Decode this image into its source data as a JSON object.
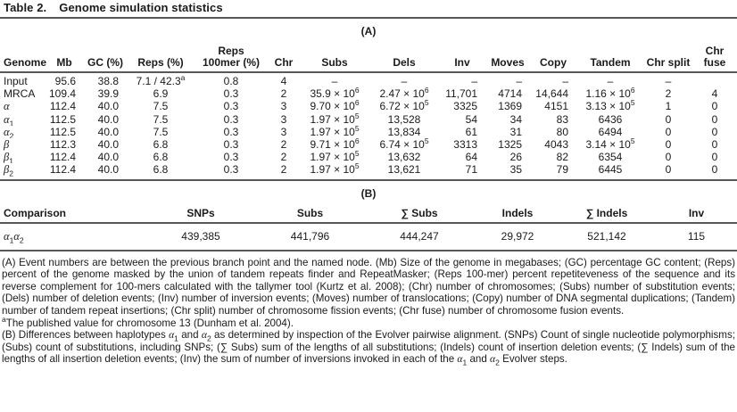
{
  "title": {
    "label": "Table 2.",
    "text": "Genome simulation statistics"
  },
  "sectionA": {
    "label": "(A)",
    "columns": [
      "Genome",
      "Mb",
      "GC (%)",
      "Reps (%)",
      "Reps\n100mer (%)",
      "Chr",
      "Subs",
      "Dels",
      "Inv",
      "Moves",
      "Copy",
      "Tandem",
      "Chr split",
      "Chr fuse"
    ],
    "rows": [
      [
        "Input",
        "95.6",
        "38.8",
        "7.1 / 42.3^a",
        "0.8",
        "4",
        "–",
        "–",
        "–",
        "–",
        "–",
        "–",
        "–",
        ""
      ],
      [
        "MRCA",
        "109.4",
        "39.9",
        "6.9",
        "0.3",
        "2",
        "35.9 × 10^6",
        "2.47 × 10^6",
        "11,701",
        "4714",
        "14,644",
        "1.16 × 10^6",
        "2",
        "4"
      ],
      [
        "α",
        "112.4",
        "40.0",
        "7.5",
        "0.3",
        "3",
        "9.70 × 10^6",
        "6.72 × 10^5",
        "3325",
        "1369",
        "4151",
        "3.13 × 10^5",
        "1",
        "0"
      ],
      [
        "α~1",
        "112.5",
        "40.0",
        "7.5",
        "0.3",
        "3",
        "1.97 × 10^5",
        "13,528",
        "54",
        "34",
        "83",
        "6436",
        "0",
        "0"
      ],
      [
        "α~2",
        "112.5",
        "40.0",
        "7.5",
        "0.3",
        "3",
        "1.97 × 10^5",
        "13,834",
        "61",
        "31",
        "80",
        "6494",
        "0",
        "0"
      ],
      [
        "β",
        "112.3",
        "40.0",
        "6.8",
        "0.3",
        "2",
        "9.71 × 10^6",
        "6.74 × 10^5",
        "3313",
        "1325",
        "4043",
        "3.14 × 10^5",
        "0",
        "0"
      ],
      [
        "β~1",
        "112.4",
        "40.0",
        "6.8",
        "0.3",
        "2",
        "1.97 × 10^5",
        "13,632",
        "64",
        "26",
        "82",
        "6354",
        "0",
        "0"
      ],
      [
        "β~2",
        "112.4",
        "40.0",
        "6.8",
        "0.3",
        "2",
        "1.97 × 10^5",
        "13,621",
        "71",
        "35",
        "79",
        "6445",
        "0",
        "0"
      ]
    ]
  },
  "sectionB": {
    "label": "(B)",
    "columns": [
      "Comparison",
      "SNPs",
      "Subs",
      "∑ Subs",
      "Indels",
      "∑ Indels",
      "Inv"
    ],
    "rows": [
      [
        "α~1α~2",
        "439,385",
        "441,796",
        "444,247",
        "29,972",
        "521,142",
        "115"
      ]
    ]
  },
  "footnotes": [
    "(A) Event numbers are between the previous branch point and the named node. (Mb) Size of the genome in megabases; (GC) percentage GC content; (Reps) percent of the genome masked by the union of tandem repeats finder and RepeatMasker; (Reps 100-mer) percent repetiteveness of the sequence and its reverse complement for 100-mers calculated with the tallymer tool (Kurtz et al. 2008); (Chr) number of chromosomes; (Subs) number of substitution events; (Dels) number of deletion events; (Inv) number of inversion events; (Moves) number of translocations; (Copy) number of DNA segmental duplications; (Tandem) number of tandem repeat insertions; (Chr split) number of chromosome fission events; (Chr fuse) number of chromosome fusion events.",
    "^aThe published value for chromosome 13 (Dunham et al. 2004).",
    "(B) Differences between haplotypes α~1 and α~2 as determined by inspection of the Evolver pairwise alignment. (SNPs) Count of single nucleotide polymorphisms; (Subs) count of substitutions, including SNPs; (∑ Subs) sum of the lengths of all substitutions; (Indels) count of insertion deletion events; (∑ Indels) sum of the lengths of all insertion deletion events; (Inv) the sum of number of inversions invoked in each of the α~1 and α~2 Evolver steps."
  ]
}
